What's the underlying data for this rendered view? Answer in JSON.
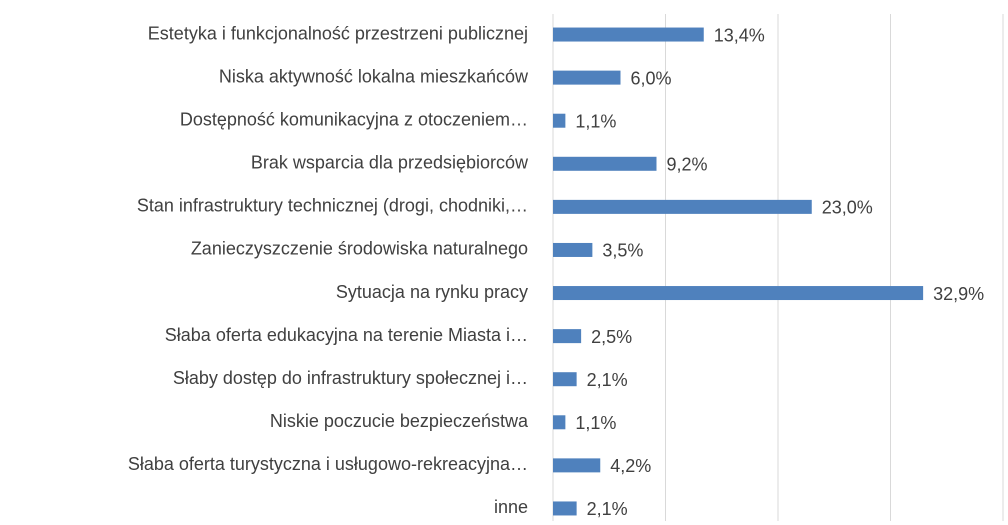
{
  "chart_data": {
    "type": "bar",
    "orientation": "horizontal",
    "categories": [
      "Estetyka i funkcjonalność przestrzeni publicznej",
      "Niska aktywność lokalna mieszkańców",
      "Dostępność komunikacyjna z otoczeniem…",
      "Brak wsparcia dla przedsiębiorców",
      "Stan infrastruktury technicznej (drogi, chodniki,…",
      "Zanieczyszczenie środowiska naturalnego",
      "Sytuacja na rynku pracy",
      "Słaba oferta edukacyjna na terenie Miasta i…",
      "Słaby dostęp do infrastruktury społecznej i…",
      "Niskie poczucie bezpieczeństwa",
      "Słaba oferta turystyczna i usługowo-rekreacyjna…",
      "inne"
    ],
    "values": [
      13.4,
      6.0,
      1.1,
      9.2,
      23.0,
      3.5,
      32.9,
      2.5,
      2.1,
      1.1,
      4.2,
      2.1
    ],
    "value_labels": [
      "13,4%",
      "6,0%",
      "1,1%",
      "9,2%",
      "23,0%",
      "3,5%",
      "32,9%",
      "2,5%",
      "2,1%",
      "1,1%",
      "4,2%",
      "2,1%"
    ],
    "color": "#4f81bd",
    "xlim": [
      0,
      40
    ],
    "xticks": [
      0,
      10,
      20,
      30,
      40
    ],
    "grid": true
  }
}
